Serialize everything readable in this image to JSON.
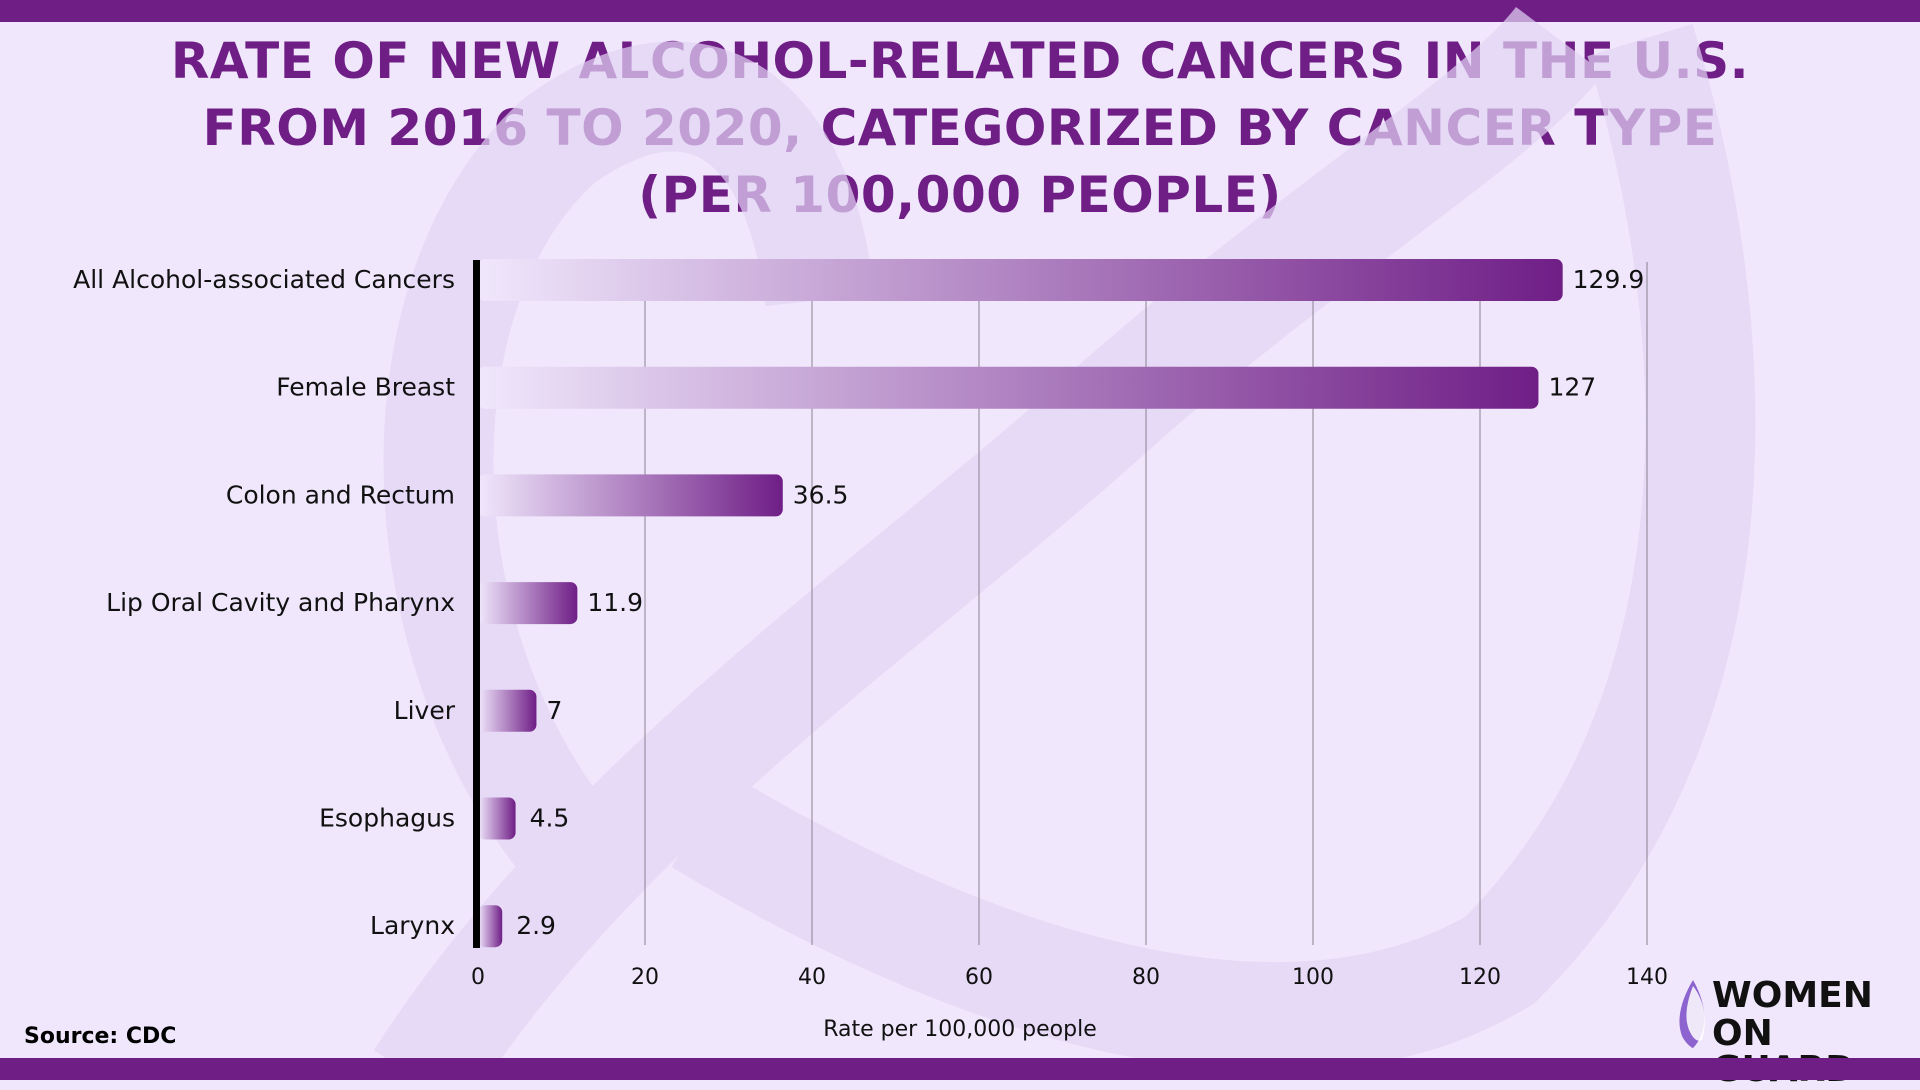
{
  "title_lines": [
    "RATE OF NEW ALCOHOL-RELATED CANCERS IN THE U.S.",
    "FROM 2016 TO 2020, CATEGORIZED BY CANCER TYPE",
    "(PER 100,000 PEOPLE)"
  ],
  "source": "Source: CDC",
  "logo": {
    "line1": "WOMEN",
    "line2": "ON GUARD"
  },
  "colors": {
    "brand": "#6f1e86",
    "background": "#f0e7fc"
  },
  "chart_data": {
    "type": "bar",
    "orientation": "horizontal",
    "title": "RATE OF NEW ALCOHOL-RELATED CANCERS IN THE U.S. FROM 2016 TO 2020, CATEGORIZED BY CANCER TYPE (PER 100,000 PEOPLE)",
    "categories": [
      "All Alcohol-associated Cancers",
      "Female Breast",
      "Colon and Rectum",
      "Lip Oral Cavity and Pharynx",
      "Liver",
      "Esophagus",
      "Larynx"
    ],
    "values": [
      129.9,
      127,
      36.5,
      11.9,
      7,
      4.5,
      2.9
    ],
    "value_labels": [
      "129.9",
      "127",
      "36.5",
      "11.9",
      "7",
      "4.5",
      "2.9"
    ],
    "xlabel": "Rate per 100,000 people",
    "ylabel": "",
    "xlim": [
      0,
      140
    ],
    "xticks": [
      "0",
      "20",
      "40",
      "60",
      "80",
      "100",
      "120",
      "140"
    ],
    "grid": "vertical",
    "bar_gradient": [
      "#f0e7fc",
      "#6f1e86"
    ]
  }
}
